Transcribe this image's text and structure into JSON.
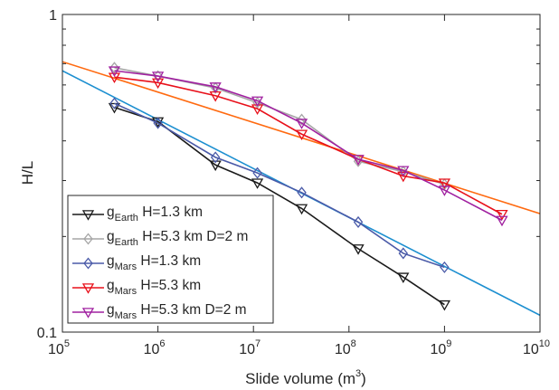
{
  "chart_data": {
    "type": "line",
    "xscale": "log",
    "yscale": "log",
    "xlim": [
      100000,
      10000000000
    ],
    "ylim": [
      0.1,
      1
    ],
    "grid": false,
    "legend_position": "bottom-left",
    "title": "",
    "xlabel": "Slide volume (m",
    "xlabel_sup": "3",
    "xlabel_tail": ")",
    "ylabel": "H/L",
    "x_ticks": [
      {
        "value": 100000,
        "base": "10",
        "exp": "5"
      },
      {
        "value": 1000000,
        "base": "10",
        "exp": "6"
      },
      {
        "value": 10000000,
        "base": "10",
        "exp": "7"
      },
      {
        "value": 100000000,
        "base": "10",
        "exp": "8"
      },
      {
        "value": 1000000000,
        "base": "10",
        "exp": "9"
      },
      {
        "value": 10000000000,
        "base": "10",
        "exp": "10"
      }
    ],
    "y_ticks": [
      {
        "value": 0.1,
        "label": "0.1"
      },
      {
        "value": 1,
        "label": "1"
      }
    ],
    "series": [
      {
        "label_main": "g",
        "label_sub": "Earth",
        "label_rest": " H=1.3 km",
        "color": "#1a1a1a",
        "marker": "triangle-down",
        "x": [
          350000,
          1000000,
          4000000,
          11000000,
          32000000,
          125000000,
          370000000,
          1000000000
        ],
        "y": [
          0.51,
          0.46,
          0.336,
          0.295,
          0.245,
          0.183,
          0.149,
          0.122
        ]
      },
      {
        "label_main": "g",
        "label_sub": "Earth",
        "label_rest": " H=5.3 km D=2 m",
        "color": "#a6a6a6",
        "marker": "diamond",
        "x": [
          350000,
          1000000,
          4000000,
          11000000,
          32000000,
          125000000,
          370000000,
          1000000000
        ],
        "y": [
          0.68,
          0.64,
          0.587,
          0.527,
          0.467,
          0.345,
          0.32,
          0.292
        ]
      },
      {
        "label_main": "g",
        "label_sub": "Mars",
        "label_rest": " H=1.3 km",
        "color": "#4a5aa8",
        "marker": "diamond",
        "x": [
          350000,
          1000000,
          4000000,
          11000000,
          32000000,
          125000000,
          370000000,
          1000000000
        ],
        "y": [
          0.525,
          0.455,
          0.355,
          0.317,
          0.275,
          0.222,
          0.177,
          0.16
        ]
      },
      {
        "label_main": "g",
        "label_sub": "Mars",
        "label_rest": " H=5.3 km",
        "color": "#e8101a",
        "marker": "triangle-down",
        "x": [
          350000,
          1000000,
          4000000,
          11000000,
          32000000,
          125000000,
          370000000,
          1000000000,
          4000000000
        ],
        "y": [
          0.635,
          0.61,
          0.555,
          0.505,
          0.42,
          0.35,
          0.31,
          0.295,
          0.235
        ]
      },
      {
        "label_main": "g",
        "label_sub": "Mars",
        "label_rest": " H=5.3 km D=2 m",
        "color": "#a020a0",
        "marker": "triangle-down",
        "x": [
          350000,
          1000000,
          4000000,
          11000000,
          32000000,
          125000000,
          370000000,
          1000000000,
          4000000000
        ],
        "y": [
          0.665,
          0.64,
          0.592,
          0.535,
          0.455,
          0.35,
          0.323,
          0.28,
          0.225
        ]
      }
    ],
    "fit_lines": [
      {
        "color": "#ff6a10",
        "x": [
          100000,
          10000000000
        ],
        "y": [
          0.71,
          0.236
        ]
      },
      {
        "color": "#1c8fd0",
        "x": [
          100000,
          10000000000
        ],
        "y": [
          0.665,
          0.113
        ]
      }
    ]
  }
}
